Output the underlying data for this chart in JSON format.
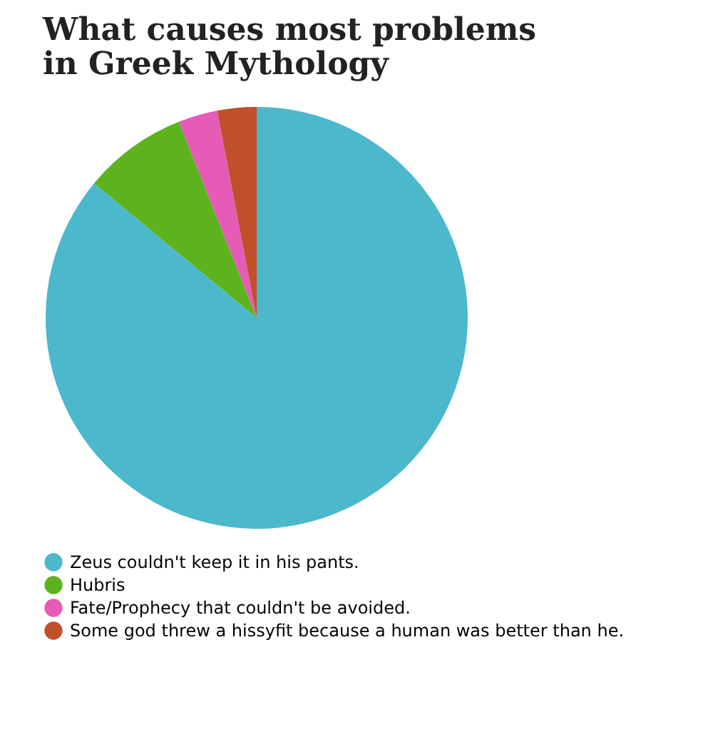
{
  "chart_data": {
    "type": "pie",
    "title": "What causes most problems\nin Greek Mythology",
    "categories": [
      "Zeus couldn't keep it in his pants.",
      "Hubris",
      "Fate/Prophecy that couldn't be avoided.",
      "Some god threw a hissyfit because a human was better than he."
    ],
    "values": [
      86,
      8,
      3,
      3
    ],
    "colors": [
      "#4bb8cc",
      "#5db31e",
      "#e55bb5",
      "#c0502a"
    ],
    "legend": "bottom"
  }
}
